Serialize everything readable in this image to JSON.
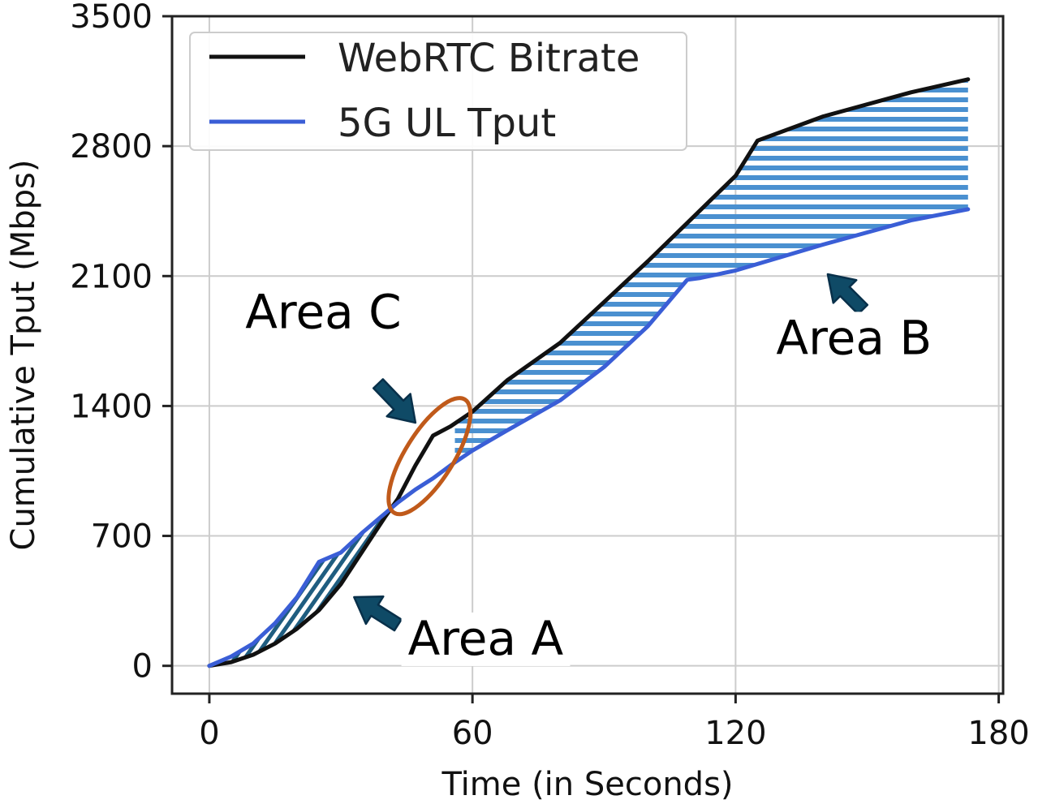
{
  "chart_data": {
    "type": "line",
    "title": "",
    "xlabel": "Time (in Seconds)",
    "ylabel": "Cumulative Tput (Mbps)",
    "xlim": [
      -8.5,
      181
    ],
    "ylim": [
      -150,
      3500
    ],
    "xticks": [
      0,
      60,
      120,
      180
    ],
    "yticks": [
      0,
      700,
      1400,
      2100,
      2800,
      3500
    ],
    "grid": true,
    "legend_position": "top-left",
    "series": [
      {
        "name": "WebRTC Bitrate",
        "color": "#111111",
        "x": [
          0,
          5,
          10,
          15,
          20,
          25,
          30,
          35,
          40,
          43,
          47,
          51,
          55,
          60,
          68,
          80,
          90,
          100,
          110,
          120,
          125,
          140,
          160,
          173
        ],
        "y": [
          0,
          20,
          60,
          120,
          200,
          300,
          440,
          620,
          800,
          900,
          1080,
          1240,
          1290,
          1370,
          1540,
          1740,
          1960,
          2180,
          2410,
          2640,
          2830,
          2960,
          3090,
          3160
        ]
      },
      {
        "name": "5G UL Tput",
        "color": "#3a5ed6",
        "x": [
          0,
          5,
          10,
          15,
          20,
          25,
          30,
          35,
          40,
          43,
          47,
          51,
          55,
          60,
          68,
          80,
          90,
          100,
          109,
          112,
          120,
          140,
          160,
          173
        ],
        "y": [
          0,
          50,
          120,
          230,
          370,
          560,
          610,
          720,
          820,
          880,
          950,
          1010,
          1080,
          1160,
          1270,
          1430,
          1610,
          1830,
          2080,
          2090,
          2130,
          2270,
          2400,
          2460
        ]
      }
    ],
    "shaded_regions": [
      {
        "name": "Area A",
        "between": [
          "5G UL Tput",
          "WebRTC Bitrate"
        ],
        "x_range": [
          0,
          43
        ],
        "color": "#1f5d80"
      },
      {
        "name": "Area B",
        "between": [
          "WebRTC Bitrate",
          "5G UL Tput"
        ],
        "x_range": [
          56,
          173
        ],
        "color": "#4a90d0"
      }
    ],
    "annotations": [
      {
        "label": "Area A",
        "text_x": 63,
        "text_y": 60,
        "arrow_from": [
          43,
          220
        ],
        "arrow_to": [
          33,
          370
        ]
      },
      {
        "label": "Area B",
        "text_x": 147,
        "text_y": 1680,
        "arrow_from": [
          149,
          1920
        ],
        "arrow_to": [
          141,
          2110
        ]
      },
      {
        "label": "Area C",
        "text_x": 26,
        "text_y": 1820,
        "arrow_from": [
          38.5,
          1520
        ],
        "arrow_to": [
          47,
          1310
        ]
      }
    ],
    "highlight_ellipse": {
      "label": "Area C",
      "cx": 50.2,
      "cy": 1130,
      "rx": 5.5,
      "ry": 360,
      "rotate_deg": 32,
      "color": "#c05a1a"
    }
  },
  "colors": {
    "webrtc_line": "#111111",
    "ul_line": "#3a5ed6",
    "area_a": "#1f5d80",
    "area_b": "#4a90d0",
    "arrow_fill": "#0f4a66",
    "ellipse": "#c05a1a",
    "grid": "#cccccc"
  }
}
